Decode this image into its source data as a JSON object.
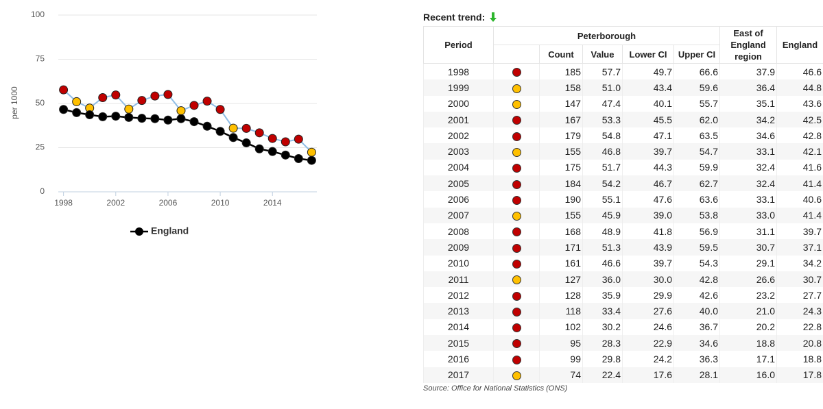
{
  "chart_data": {
    "type": "line",
    "y_label": "per 1000",
    "x": [
      1998,
      1999,
      2000,
      2001,
      2002,
      2003,
      2004,
      2005,
      2006,
      2007,
      2008,
      2009,
      2010,
      2011,
      2012,
      2013,
      2014,
      2015,
      2016,
      2017
    ],
    "xlim": [
      1997.6,
      2017.4
    ],
    "xticks": [
      1998,
      2002,
      2006,
      2010,
      2014
    ],
    "ylim": [
      0,
      100
    ],
    "yticks": [
      0,
      25,
      50,
      75,
      100
    ],
    "grid": true,
    "series": [
      {
        "color": "#8fbde6",
        "point_colors": [
          "#c00000",
          "#ffc000",
          "#ffc000",
          "#c00000",
          "#c00000",
          "#ffc000",
          "#c00000",
          "#c00000",
          "#c00000",
          "#ffc000",
          "#c00000",
          "#c00000",
          "#c00000",
          "#ffc000",
          "#c00000",
          "#c00000",
          "#c00000",
          "#c00000",
          "#c00000",
          "#ffc000"
        ],
        "values": [
          57.7,
          51.0,
          47.4,
          53.3,
          54.8,
          46.8,
          51.7,
          54.2,
          55.1,
          45.9,
          48.9,
          51.3,
          46.6,
          36.0,
          35.9,
          33.4,
          30.2,
          28.3,
          29.8,
          22.4
        ]
      },
      {
        "name": "England",
        "color": "#000000",
        "values": [
          46.6,
          44.8,
          43.6,
          42.5,
          42.8,
          42.1,
          41.6,
          41.4,
          40.6,
          41.4,
          39.7,
          37.1,
          34.2,
          30.7,
          27.7,
          24.3,
          22.8,
          20.8,
          18.8,
          17.8
        ]
      }
    ]
  },
  "table": {
    "title": "Recent trend:",
    "header": {
      "period": "Period",
      "group": "Peterborough",
      "subcolumns": [
        "Count",
        "Value",
        "Lower CI",
        "Upper CI"
      ],
      "region": "East of England region",
      "england": "England"
    },
    "rows": [
      [
        "1998",
        "185",
        "57.7",
        "49.7",
        "66.6",
        "37.9",
        "46.6"
      ],
      [
        "1999",
        "158",
        "51.0",
        "43.4",
        "59.6",
        "36.4",
        "44.8"
      ],
      [
        "2000",
        "147",
        "47.4",
        "40.1",
        "55.7",
        "35.1",
        "43.6"
      ],
      [
        "2001",
        "167",
        "53.3",
        "45.5",
        "62.0",
        "34.2",
        "42.5"
      ],
      [
        "2002",
        "179",
        "54.8",
        "47.1",
        "63.5",
        "34.6",
        "42.8"
      ],
      [
        "2003",
        "155",
        "46.8",
        "39.7",
        "54.7",
        "33.1",
        "42.1"
      ],
      [
        "2004",
        "175",
        "51.7",
        "44.3",
        "59.9",
        "32.4",
        "41.6"
      ],
      [
        "2005",
        "184",
        "54.2",
        "46.7",
        "62.7",
        "32.4",
        "41.4"
      ],
      [
        "2006",
        "190",
        "55.1",
        "47.6",
        "63.6",
        "33.1",
        "40.6"
      ],
      [
        "2007",
        "155",
        "45.9",
        "39.0",
        "53.8",
        "33.0",
        "41.4"
      ],
      [
        "2008",
        "168",
        "48.9",
        "41.8",
        "56.9",
        "31.1",
        "39.7"
      ],
      [
        "2009",
        "171",
        "51.3",
        "43.9",
        "59.5",
        "30.7",
        "37.1"
      ],
      [
        "2010",
        "161",
        "46.6",
        "39.7",
        "54.3",
        "29.1",
        "34.2"
      ],
      [
        "2011",
        "127",
        "36.0",
        "30.0",
        "42.8",
        "26.6",
        "30.7"
      ],
      [
        "2012",
        "128",
        "35.9",
        "29.9",
        "42.6",
        "23.2",
        "27.7"
      ],
      [
        "2013",
        "118",
        "33.4",
        "27.6",
        "40.0",
        "21.0",
        "24.3"
      ],
      [
        "2014",
        "102",
        "30.2",
        "24.6",
        "36.7",
        "20.2",
        "22.8"
      ],
      [
        "2015",
        "95",
        "28.3",
        "22.9",
        "34.6",
        "18.8",
        "20.8"
      ],
      [
        "2016",
        "99",
        "29.8",
        "24.2",
        "36.3",
        "17.1",
        "18.8"
      ],
      [
        "2017",
        "74",
        "22.4",
        "17.6",
        "28.1",
        "16.0",
        "17.8"
      ]
    ],
    "source": "Source: Office for National Statistics (ONS)"
  }
}
